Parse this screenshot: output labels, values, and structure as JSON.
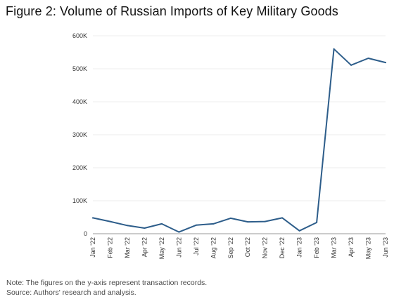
{
  "figure": {
    "title": "Figure 2: Volume of Russian Imports of Key Military Goods",
    "note": "Note: The figures on the y-axis represent transaction records.",
    "source": "Source: Authors' research and analysis."
  },
  "colors": {
    "line": "#2d5d8a",
    "grid": "#e6e6e6",
    "axis": "#999999"
  },
  "chart_data": {
    "type": "line",
    "title": "Figure 2: Volume of Russian Imports of Key Military Goods",
    "xlabel": "",
    "ylabel": "",
    "categories": [
      "Jan '22",
      "Feb '22",
      "Mar '22",
      "Apr '22",
      "May '22",
      "Jun '22",
      "Jul '22",
      "Aug '22",
      "Sep '22",
      "Oct '22",
      "Nov '22",
      "Dec '22",
      "Jan '23",
      "Feb '23",
      "Mar '23",
      "Apr '23",
      "May '23",
      "Jun '23"
    ],
    "values": [
      48000,
      37000,
      25000,
      17000,
      30000,
      5000,
      26000,
      30000,
      47000,
      36000,
      37000,
      48000,
      9000,
      34000,
      560000,
      511000,
      532000,
      519000
    ],
    "ylim": [
      0,
      600000
    ],
    "yticks": [
      0,
      100000,
      200000,
      300000,
      400000,
      500000,
      600000
    ],
    "ytick_labels": [
      "0",
      "100K",
      "200K",
      "300K",
      "400K",
      "500K",
      "600K"
    ],
    "grid": "horizontal",
    "legend": "none"
  }
}
